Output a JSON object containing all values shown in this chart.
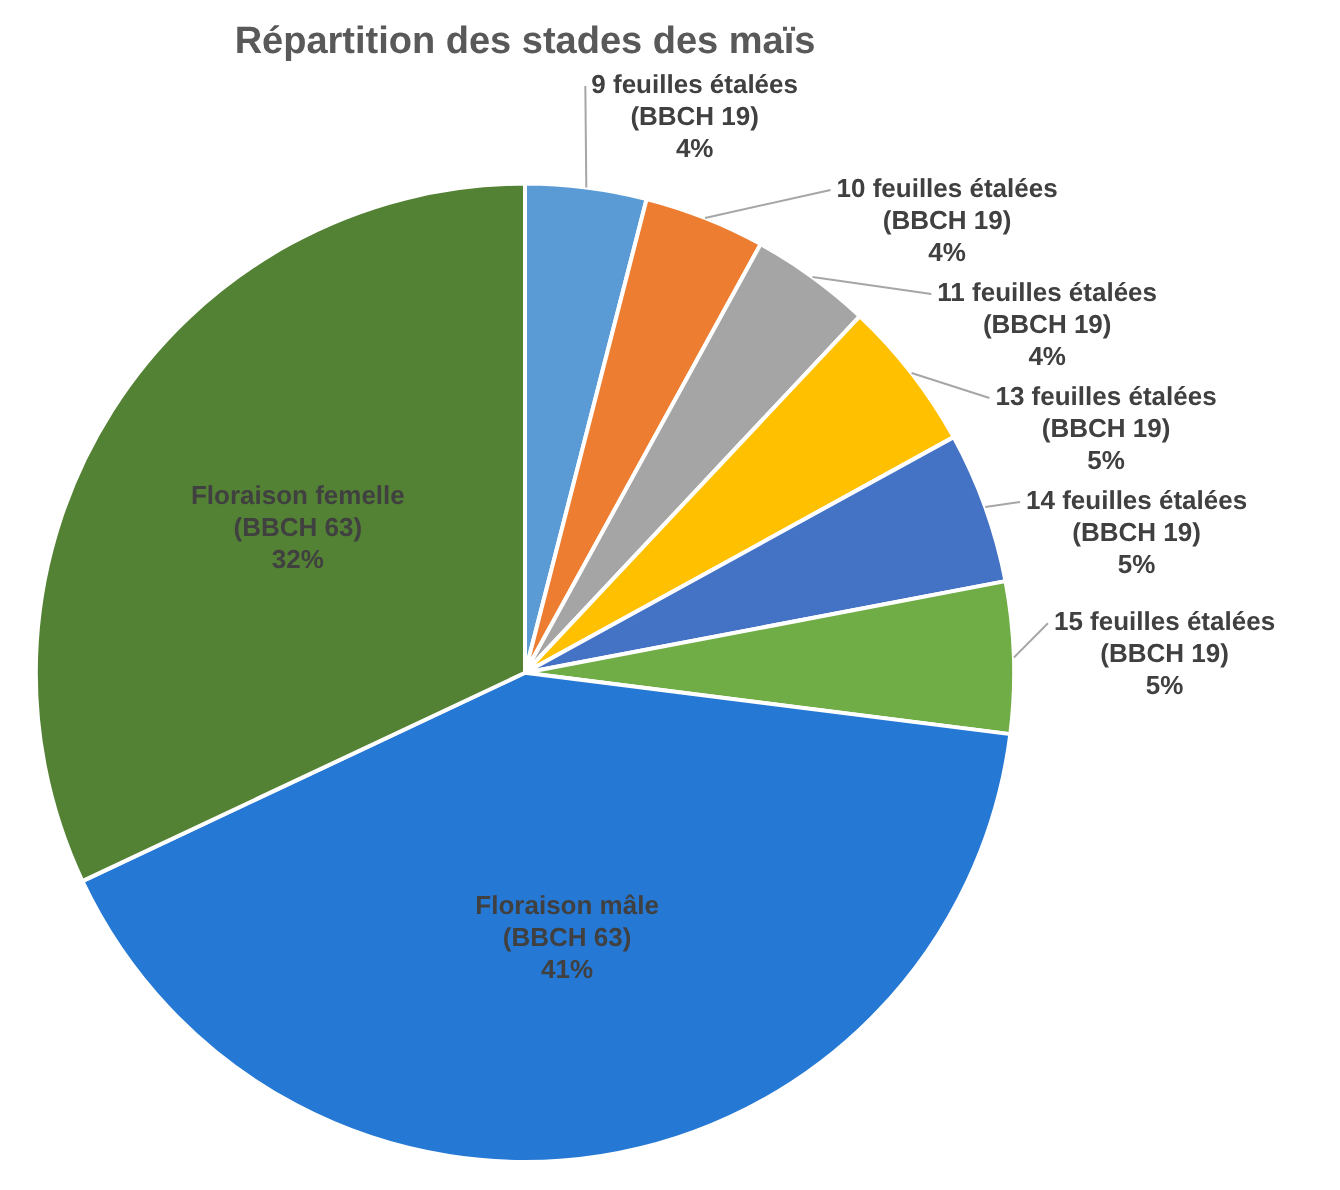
{
  "chart_data": {
    "type": "pie",
    "title": "Répartition des stades des maïs",
    "categories": [
      "9 feuilles étalées (BBCH 19)",
      "10 feuilles étalées (BBCH 19)",
      "11 feuilles étalées (BBCH 19)",
      "13 feuilles étalées (BBCH 19)",
      "14 feuilles étalées (BBCH 19)",
      "15 feuilles étalées (BBCH 19)",
      "Floraison mâle (BBCH 63)",
      "Floraison femelle (BBCH 63)"
    ],
    "values": [
      4,
      4,
      4,
      5,
      5,
      5,
      41,
      32
    ],
    "colors": [
      "#5b9bd5",
      "#ed7d31",
      "#a5a5a5",
      "#ffc000",
      "#4472c4",
      "#70ad47",
      "#2579d4",
      "#548235"
    ],
    "value_labels": [
      "4%",
      "4%",
      "4%",
      "5%",
      "5%",
      "5%",
      "41%",
      "32%"
    ],
    "legend": false
  }
}
